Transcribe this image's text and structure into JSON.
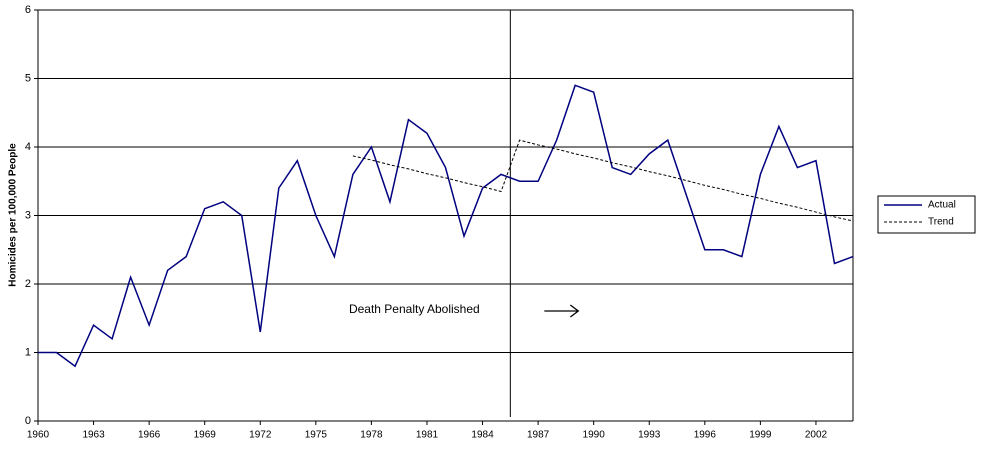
{
  "chart_data": {
    "type": "line",
    "ylabel": "Homicides per 100,000 People",
    "x": [
      1960,
      1961,
      1962,
      1963,
      1964,
      1965,
      1966,
      1967,
      1968,
      1969,
      1970,
      1971,
      1972,
      1973,
      1974,
      1975,
      1976,
      1977,
      1978,
      1979,
      1980,
      1981,
      1982,
      1983,
      1984,
      1985,
      1986,
      1987,
      1988,
      1989,
      1990,
      1991,
      1992,
      1993,
      1994,
      1995,
      1996,
      1997,
      1998,
      1999,
      2000,
      2001,
      2002,
      2003,
      2004
    ],
    "series": [
      {
        "name": "Actual",
        "color": "#000080",
        "style": "solid",
        "values": [
          1.0,
          1.0,
          0.8,
          1.4,
          1.2,
          2.1,
          1.4,
          2.2,
          2.4,
          3.1,
          3.2,
          3.0,
          1.3,
          3.4,
          3.8,
          3.0,
          2.4,
          3.6,
          4.0,
          3.2,
          4.4,
          4.2,
          3.7,
          2.7,
          3.4,
          3.6,
          3.5,
          3.5,
          4.1,
          4.9,
          4.8,
          3.7,
          3.6,
          3.9,
          4.1,
          3.3,
          2.5,
          2.5,
          2.4,
          3.6,
          4.3,
          3.7,
          3.8,
          2.3,
          2.4
        ]
      },
      {
        "name": "Trend",
        "color": "#000000",
        "style": "dotted",
        "values": [
          null,
          null,
          null,
          null,
          null,
          null,
          null,
          null,
          null,
          null,
          null,
          null,
          null,
          null,
          null,
          null,
          null,
          3.87,
          3.81,
          3.74,
          3.68,
          3.61,
          3.55,
          3.48,
          3.42,
          3.35,
          4.1,
          4.03,
          3.97,
          3.9,
          3.84,
          3.77,
          3.71,
          3.64,
          3.58,
          3.51,
          3.44,
          3.38,
          3.31,
          3.25,
          3.18,
          3.12,
          3.05,
          2.98,
          2.92
        ]
      }
    ],
    "xlim": [
      1960,
      2004
    ],
    "xticks": [
      1960,
      1963,
      1966,
      1969,
      1972,
      1975,
      1978,
      1981,
      1984,
      1987,
      1990,
      1993,
      1996,
      1999,
      2002
    ],
    "ylim": [
      0,
      6
    ],
    "yticks": [
      0,
      1,
      2,
      3,
      4,
      5,
      6
    ],
    "grid": true,
    "vline": 1985.5,
    "annotation": "Death Penalty Abolished",
    "legend": "right"
  }
}
